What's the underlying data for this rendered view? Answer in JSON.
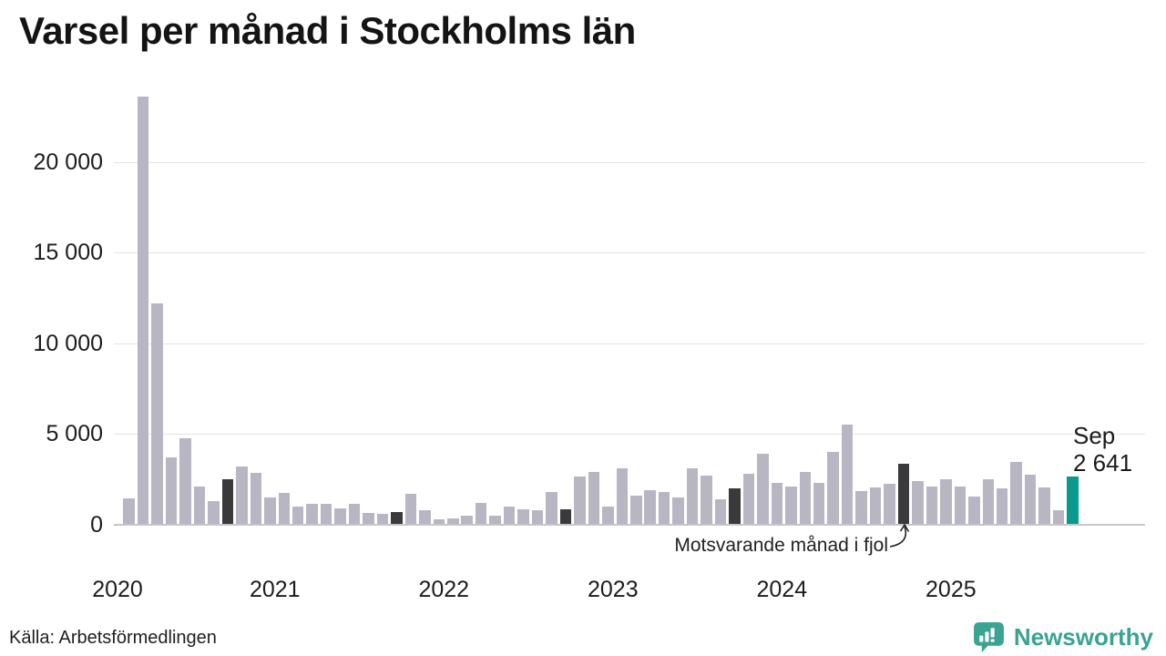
{
  "title": "Varsel per månad i Stockholms län",
  "source": "Källa: Arbetsförmedlingen",
  "logo": {
    "text": "Newsworthy"
  },
  "annotation": {
    "text": "Motsvarande månad i fjol"
  },
  "highlight_label": {
    "line1": "Sep",
    "line2": "2 641"
  },
  "colors": {
    "bar": "#b9b6c4",
    "bar_dark": "#3a3a3c",
    "bar_highlight": "#0a9a8c",
    "grid": "#e4e4e6",
    "axis": "#c7c7ca",
    "logo_teal": "#3aa392"
  },
  "y_axis": {
    "tick_values": [
      0,
      5000,
      10000,
      15000,
      20000
    ],
    "tick_labels": [
      "0",
      "5 000",
      "10 000",
      "15 000",
      "20 000"
    ]
  },
  "x_axis": {
    "year_labels": [
      "2020",
      "2021",
      "2022",
      "2023",
      "2024",
      "2025"
    ]
  },
  "chart_data": {
    "type": "bar",
    "title": "Varsel per månad i Stockholms län",
    "ylabel": "",
    "xlabel": "",
    "ylim": [
      0,
      24000
    ],
    "grid": true,
    "x": [
      "Feb 2020",
      "Mar 2020",
      "Apr 2020",
      "Maj 2020",
      "Jun 2020",
      "Jul 2020",
      "Aug 2020",
      "Sep 2020",
      "Okt 2020",
      "Nov 2020",
      "Dec 2020",
      "Jan 2021",
      "Feb 2021",
      "Mar 2021",
      "Apr 2021",
      "Maj 2021",
      "Jun 2021",
      "Jul 2021",
      "Aug 2021",
      "Sep 2021",
      "Okt 2021",
      "Nov 2021",
      "Dec 2021",
      "Jan 2022",
      "Feb 2022",
      "Mar 2022",
      "Apr 2022",
      "Maj 2022",
      "Jun 2022",
      "Jul 2022",
      "Aug 2022",
      "Sep 2022",
      "Okt 2022",
      "Nov 2022",
      "Dec 2022",
      "Jan 2023",
      "Feb 2023",
      "Mar 2023",
      "Apr 2023",
      "Maj 2023",
      "Jun 2023",
      "Jul 2023",
      "Aug 2023",
      "Sep 2023",
      "Okt 2023",
      "Nov 2023",
      "Dec 2023",
      "Jan 2024",
      "Feb 2024",
      "Mar 2024",
      "Apr 2024",
      "Maj 2024",
      "Jun 2024",
      "Jul 2024",
      "Aug 2024",
      "Sep 2024",
      "Okt 2024",
      "Nov 2024",
      "Dec 2024",
      "Jan 2025",
      "Feb 2025",
      "Mar 2025",
      "Apr 2025",
      "Maj 2025",
      "Jun 2025",
      "Jul 2025",
      "Aug 2025",
      "Sep 2025"
    ],
    "values": [
      1450,
      23600,
      12200,
      3700,
      4750,
      2100,
      1300,
      2500,
      3200,
      2850,
      1500,
      1750,
      1000,
      1150,
      1150,
      900,
      1150,
      650,
      600,
      700,
      1700,
      800,
      300,
      370,
      500,
      1200,
      500,
      1000,
      850,
      800,
      1800,
      850,
      2650,
      2900,
      1000,
      3100,
      1600,
      1900,
      1800,
      1500,
      3100,
      2700,
      1400,
      2000,
      2800,
      3900,
      2300,
      2100,
      2900,
      2300,
      4000,
      5500,
      1850,
      2050,
      2250,
      3350,
      2400,
      2100,
      2500,
      2100,
      1550,
      2500,
      2000,
      3450,
      2750,
      2050,
      800,
      2641
    ],
    "dark_months": [
      "Sep 2020",
      "Sep 2021",
      "Sep 2022",
      "Sep 2023",
      "Sep 2024"
    ],
    "highlight_month": "Sep 2025",
    "highlight_value_label": "Sep 2 641",
    "legend_position": "none"
  }
}
